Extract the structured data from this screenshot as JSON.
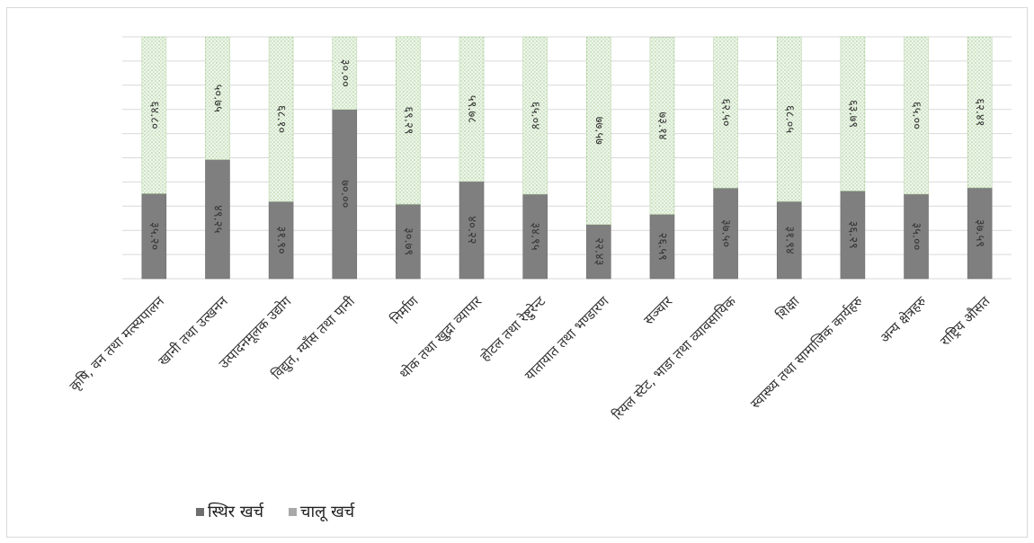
{
  "chart_data": {
    "type": "bar",
    "stacked": true,
    "percent": true,
    "categories": [
      "कृषि, वन तथा मत्स्यपालन",
      "खानी तथा उत्खनन",
      "उत्पादनमूलक उद्योग",
      "विद्युत, ग्याँस तथा पानी",
      "निर्माण",
      "थोक तथा खुद्रा व्यापार",
      "होटल तथा रेष्टुरेन्ट",
      "यातायात तथा भण्डारण",
      "सञ्चार",
      "रियल स्टेट, भाडा तथा व्यावसायिक",
      "शिक्षा",
      "स्वास्थ्य तथा सामाजिक कार्यहरु",
      "अन्य क्षेत्रहरु",
      "राष्ट्रिय औसत"
    ],
    "series": [
      {
        "name": "स्थिर खर्च",
        "color": "#7f7f7f",
        "values": [
          35.2,
          49.25,
          31.9,
          70.0,
          30.79,
          40.22,
          34.95,
          22.43,
          26.59,
          37.5,
          31.94,
          36.29,
          35.0,
          37.59
        ],
        "labels": [
          "३५.२०",
          "४९.२५",
          "३१.९०",
          "७०.००",
          "३०.७९",
          "४०.२२",
          "३४.९५",
          "२२.४३",
          "२६.५९",
          "३७.५०",
          "३१.९४",
          "३६.२९",
          "३५.००",
          "३७.५९"
        ]
      },
      {
        "name": "चालू खर्च",
        "color": "#d9ead3",
        "values": [
          64.8,
          50.75,
          68.1,
          30.0,
          69.29,
          59.78,
          65.04,
          77.57,
          73.14,
          62.5,
          68.05,
          63.79,
          65.0,
          62.41
        ],
        "labels": [
          "६४.८०",
          "५०.७५",
          "६८.१०",
          "३०.००",
          "६९.२९",
          "५९.७८",
          "६५.०४",
          "७७.५७",
          "७३.१४",
          "६२.५०",
          "६८.०५",
          "६३.७९",
          "६५.००",
          "६२.४१"
        ]
      }
    ],
    "ylim": [
      0,
      100
    ],
    "grid": true,
    "legend_position": "bottom-left"
  }
}
